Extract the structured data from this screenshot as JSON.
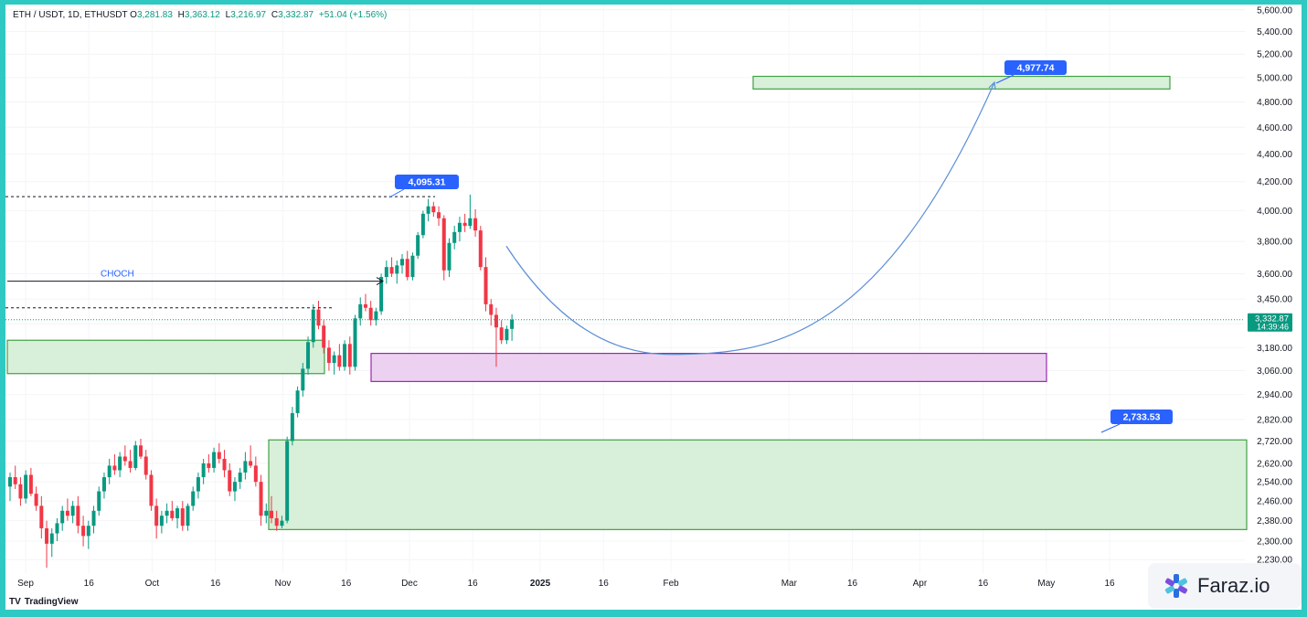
{
  "legend": {
    "symbol": "ETH / USDT, 1D, ETHUSDT",
    "open_label": "O",
    "open": "3,281.83",
    "high_label": "H",
    "high": "3,363.12",
    "low_label": "L",
    "low": "3,216.97",
    "close_label": "C",
    "close": "3,332.87",
    "change": "+51.04 (+1.56%)"
  },
  "brand": {
    "name": "TradingView",
    "mark": "TV"
  },
  "watermark": {
    "text": "Faraz.io"
  },
  "colors": {
    "up": "#089981",
    "down": "#f23645",
    "zone_green_fill": "#d8efd9",
    "zone_green_stroke": "#43a047",
    "zone_purple_fill": "#ecd2f0",
    "zone_purple_stroke": "#9c27b0",
    "callout": "#2962ff",
    "curve": "#5b8fd6"
  },
  "chart_data": {
    "type": "candlestick",
    "y_scale": "log",
    "ylim": [
      2180,
      5650
    ],
    "y_ticks": [
      "5,600.00",
      "5,400.00",
      "5,200.00",
      "5,000.00",
      "4,800.00",
      "4,600.00",
      "4,400.00",
      "4,200.00",
      "4,000.00",
      "3,800.00",
      "3,600.00",
      "3,450.00",
      "3,310.00",
      "3,180.00",
      "3,060.00",
      "2,940.00",
      "2,820.00",
      "2,720.00",
      "2,620.00",
      "2,540.00",
      "2,460.00",
      "2,380.00",
      "2,300.00",
      "2,230.00"
    ],
    "x_ticks": [
      "Sep",
      "16",
      "Oct",
      "16",
      "Nov",
      "16",
      "Dec",
      "16",
      "2025",
      "16",
      "Feb",
      "Mar",
      "16",
      "Apr",
      "16",
      "May",
      "16"
    ],
    "current_price": {
      "value": "3,332.87",
      "countdown": "14:39:46"
    },
    "annotations": {
      "high_callout": "4,095.31",
      "target_callout": "4,977.74",
      "support_callout": "2,733.53",
      "choch_label": "CHOCH"
    },
    "candles": [
      [
        2520,
        2580,
        2460,
        2560
      ],
      [
        2560,
        2610,
        2510,
        2530
      ],
      [
        2530,
        2560,
        2440,
        2470
      ],
      [
        2470,
        2590,
        2450,
        2570
      ],
      [
        2570,
        2600,
        2480,
        2490
      ],
      [
        2490,
        2520,
        2420,
        2440
      ],
      [
        2440,
        2480,
        2310,
        2350
      ],
      [
        2350,
        2380,
        2200,
        2290
      ],
      [
        2290,
        2350,
        2240,
        2330
      ],
      [
        2330,
        2390,
        2300,
        2370
      ],
      [
        2370,
        2440,
        2340,
        2420
      ],
      [
        2420,
        2470,
        2380,
        2400
      ],
      [
        2400,
        2460,
        2370,
        2440
      ],
      [
        2440,
        2480,
        2330,
        2360
      ],
      [
        2360,
        2400,
        2280,
        2320
      ],
      [
        2320,
        2380,
        2270,
        2360
      ],
      [
        2360,
        2440,
        2330,
        2420
      ],
      [
        2420,
        2520,
        2400,
        2500
      ],
      [
        2500,
        2580,
        2470,
        2560
      ],
      [
        2560,
        2640,
        2530,
        2610
      ],
      [
        2610,
        2660,
        2570,
        2590
      ],
      [
        2590,
        2670,
        2560,
        2650
      ],
      [
        2650,
        2700,
        2610,
        2630
      ],
      [
        2630,
        2680,
        2580,
        2600
      ],
      [
        2600,
        2720,
        2590,
        2700
      ],
      [
        2700,
        2730,
        2640,
        2650
      ],
      [
        2650,
        2680,
        2550,
        2570
      ],
      [
        2570,
        2590,
        2420,
        2440
      ],
      [
        2440,
        2470,
        2310,
        2360
      ],
      [
        2360,
        2420,
        2330,
        2400
      ],
      [
        2400,
        2450,
        2370,
        2420
      ],
      [
        2420,
        2460,
        2380,
        2390
      ],
      [
        2390,
        2440,
        2350,
        2430
      ],
      [
        2430,
        2460,
        2340,
        2360
      ],
      [
        2360,
        2450,
        2340,
        2440
      ],
      [
        2440,
        2520,
        2420,
        2500
      ],
      [
        2500,
        2580,
        2470,
        2560
      ],
      [
        2560,
        2640,
        2530,
        2620
      ],
      [
        2620,
        2660,
        2580,
        2600
      ],
      [
        2600,
        2690,
        2580,
        2670
      ],
      [
        2670,
        2710,
        2620,
        2640
      ],
      [
        2640,
        2680,
        2560,
        2590
      ],
      [
        2590,
        2620,
        2480,
        2500
      ],
      [
        2500,
        2560,
        2460,
        2540
      ],
      [
        2540,
        2600,
        2510,
        2580
      ],
      [
        2580,
        2670,
        2550,
        2630
      ],
      [
        2630,
        2700,
        2600,
        2610
      ],
      [
        2610,
        2650,
        2520,
        2540
      ],
      [
        2540,
        2570,
        2360,
        2400
      ],
      [
        2400,
        2450,
        2370,
        2420
      ],
      [
        2420,
        2480,
        2370,
        2390
      ],
      [
        2390,
        2420,
        2340,
        2360
      ],
      [
        2360,
        2400,
        2350,
        2380
      ],
      [
        2380,
        2740,
        2370,
        2720
      ],
      [
        2720,
        2880,
        2700,
        2850
      ],
      [
        2850,
        2980,
        2830,
        2960
      ],
      [
        2960,
        3100,
        2930,
        3070
      ],
      [
        3070,
        3240,
        3040,
        3210
      ],
      [
        3210,
        3420,
        3180,
        3390
      ],
      [
        3390,
        3440,
        3280,
        3300
      ],
      [
        3300,
        3330,
        3150,
        3180
      ],
      [
        3180,
        3220,
        3060,
        3100
      ],
      [
        3100,
        3160,
        3040,
        3140
      ],
      [
        3140,
        3200,
        3060,
        3080
      ],
      [
        3080,
        3220,
        3060,
        3200
      ],
      [
        3200,
        3240,
        3040,
        3080
      ],
      [
        3080,
        3360,
        3060,
        3340
      ],
      [
        3340,
        3460,
        3300,
        3420
      ],
      [
        3420,
        3480,
        3380,
        3400
      ],
      [
        3400,
        3440,
        3300,
        3330
      ],
      [
        3330,
        3400,
        3300,
        3380
      ],
      [
        3380,
        3600,
        3360,
        3580
      ],
      [
        3580,
        3680,
        3540,
        3640
      ],
      [
        3640,
        3700,
        3580,
        3600
      ],
      [
        3600,
        3680,
        3540,
        3650
      ],
      [
        3650,
        3720,
        3600,
        3690
      ],
      [
        3690,
        3740,
        3560,
        3580
      ],
      [
        3580,
        3730,
        3560,
        3710
      ],
      [
        3710,
        3860,
        3690,
        3840
      ],
      [
        3840,
        4000,
        3820,
        3980
      ],
      [
        3980,
        4080,
        3930,
        4030
      ],
      [
        4030,
        4060,
        3960,
        3990
      ],
      [
        3990,
        4030,
        3900,
        3950
      ],
      [
        3950,
        3970,
        3560,
        3620
      ],
      [
        3620,
        3820,
        3580,
        3790
      ],
      [
        3790,
        3900,
        3750,
        3860
      ],
      [
        3860,
        3960,
        3800,
        3920
      ],
      [
        3920,
        3980,
        3860,
        3900
      ],
      [
        3900,
        4110,
        3880,
        3950
      ],
      [
        3950,
        4010,
        3830,
        3870
      ],
      [
        3870,
        3900,
        3620,
        3640
      ],
      [
        3640,
        3700,
        3380,
        3420
      ],
      [
        3420,
        3450,
        3300,
        3360
      ],
      [
        3360,
        3400,
        3080,
        3290
      ],
      [
        3290,
        3330,
        3200,
        3220
      ],
      [
        3220,
        3300,
        3200,
        3281.83
      ],
      [
        3281.83,
        3363.12,
        3216.97,
        3332.87
      ]
    ]
  }
}
